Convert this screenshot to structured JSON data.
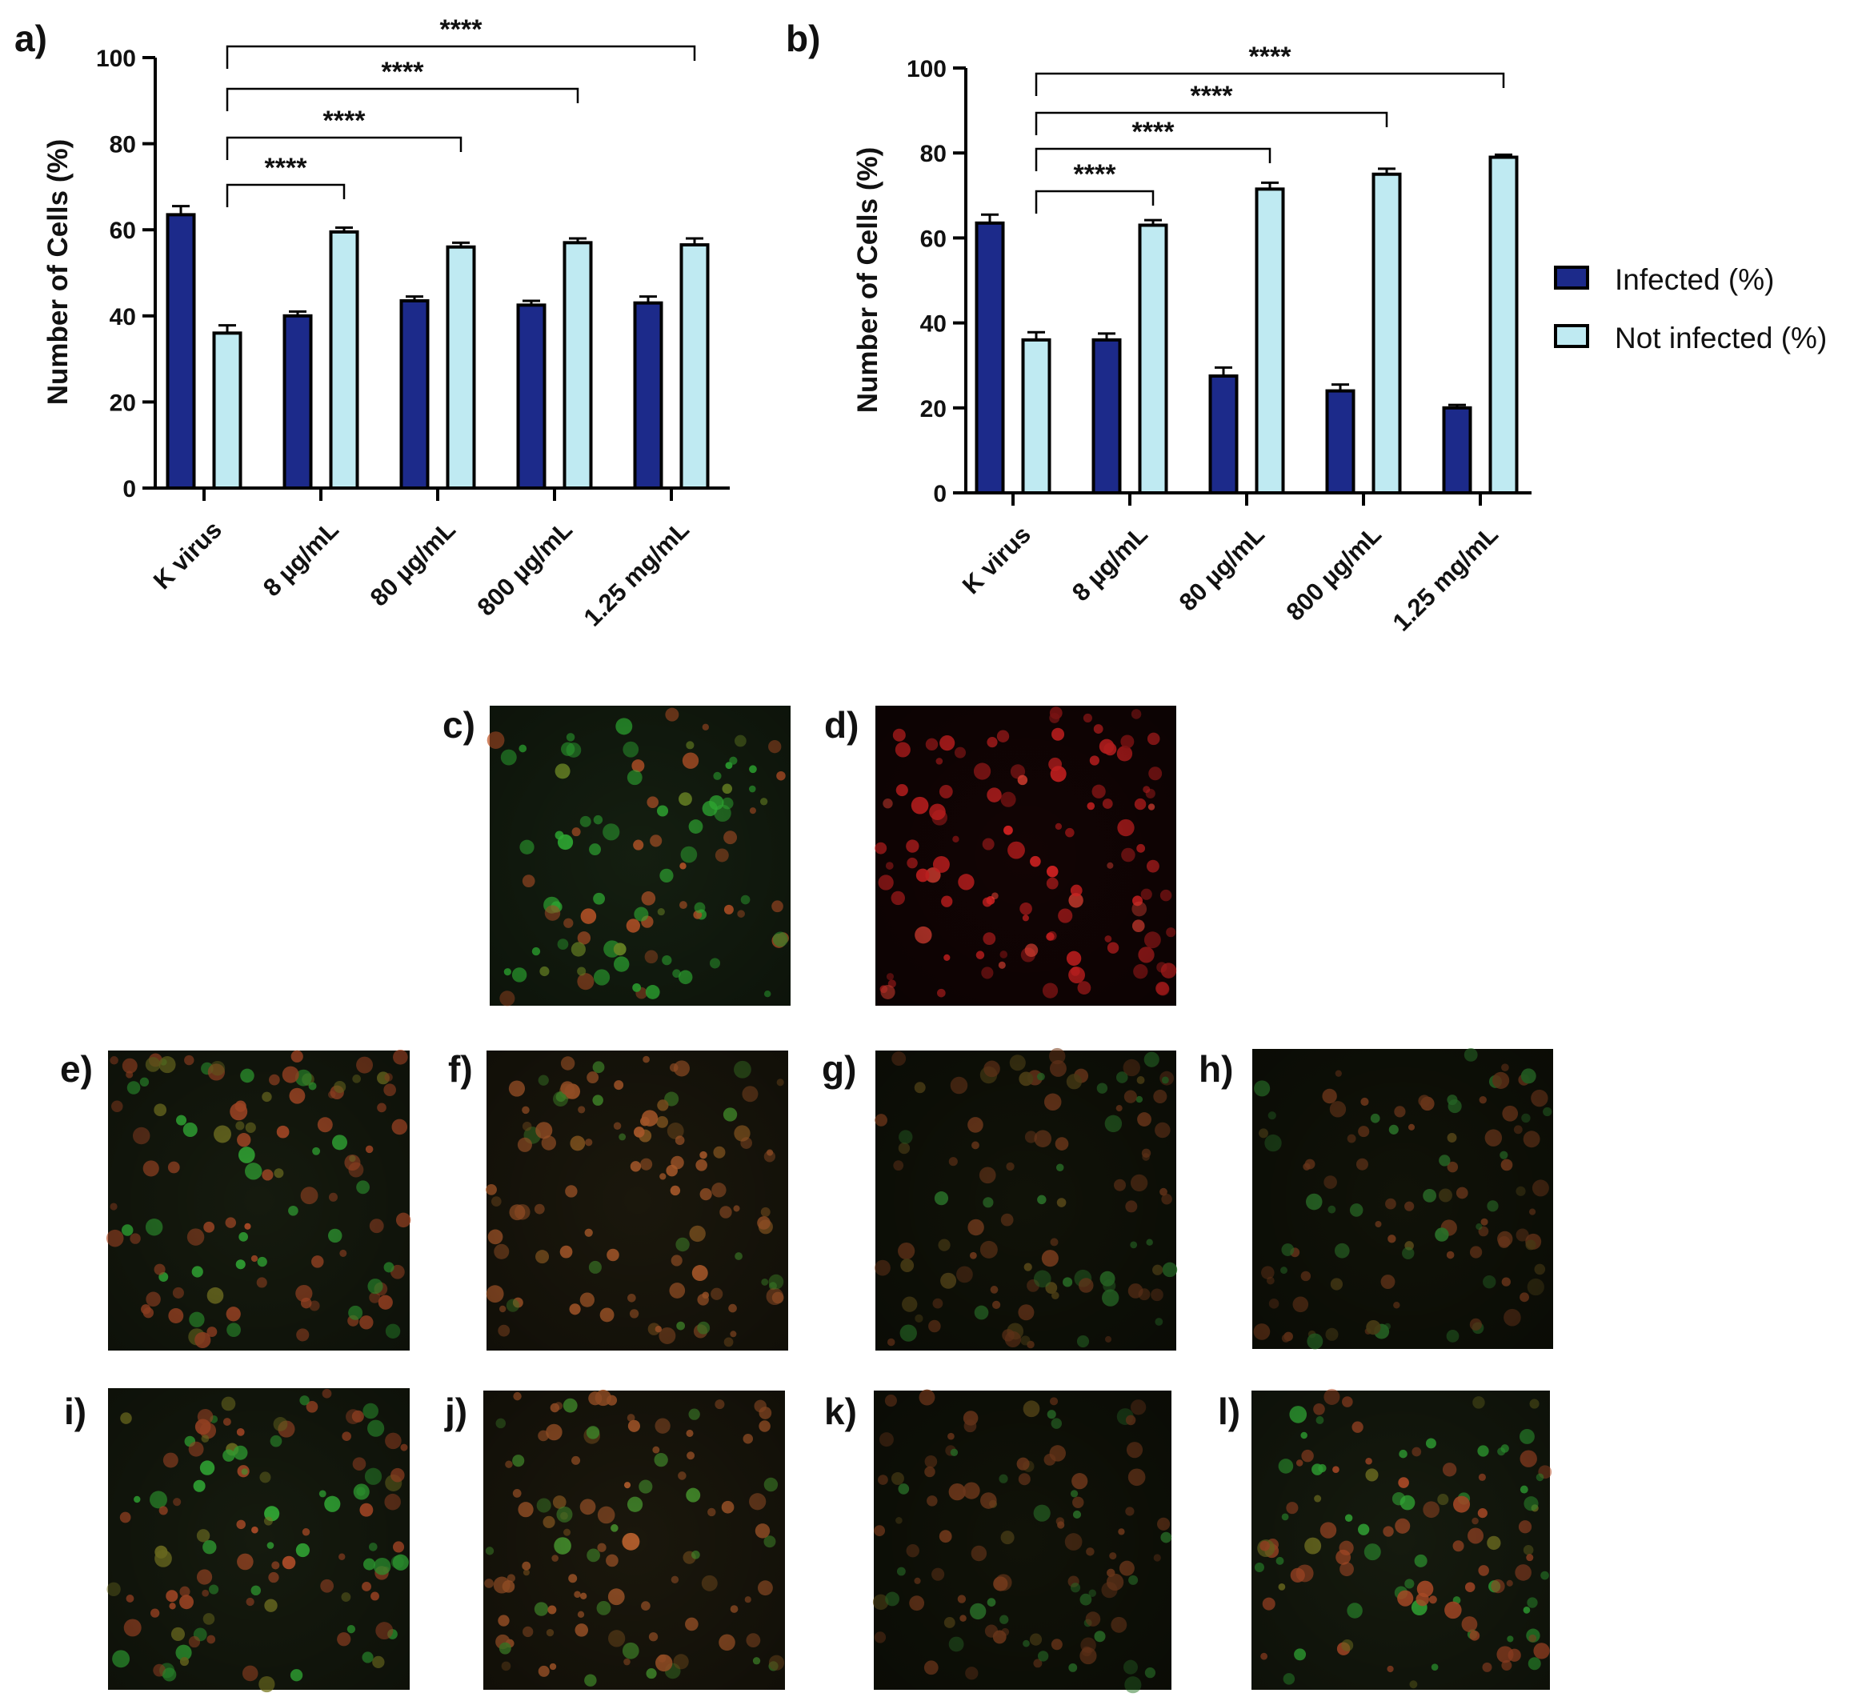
{
  "chart_data": [
    {
      "panel": "a)",
      "type": "bar",
      "categories": [
        "K virus",
        "8 µg/mL",
        "80 µg/mL",
        "800 µg/mL",
        "1.25 mg/mL"
      ],
      "series": [
        {
          "name": "Infected (%)",
          "color": "#1c2a8a",
          "values": [
            63.5,
            40,
            43.5,
            42.5,
            43
          ],
          "errors": [
            2,
            1,
            1,
            1,
            1.5
          ]
        },
        {
          "name": "Not infected (%)",
          "color": "#bfeaf2",
          "values": [
            36,
            59.5,
            56,
            57,
            56.5
          ],
          "errors": [
            1.8,
            1,
            1,
            1,
            1.5
          ]
        }
      ],
      "ylabel": "Number of Cells (%)",
      "ylim": [
        0,
        100
      ],
      "yticks": [
        "0",
        "20",
        "40",
        "60",
        "80",
        "100"
      ],
      "significance": [
        {
          "from": "K virus",
          "to": "8 µg/mL",
          "label": "****"
        },
        {
          "from": "K virus",
          "to": "80 µg/mL",
          "label": "****"
        },
        {
          "from": "K virus",
          "to": "800 µg/mL",
          "label": "****"
        },
        {
          "from": "K virus",
          "to": "1.25 mg/mL",
          "label": "****"
        }
      ]
    },
    {
      "panel": "b)",
      "type": "bar",
      "categories": [
        "K virus",
        "8 µg/mL",
        "80 µg/mL",
        "800 µg/mL",
        "1.25 mg/mL"
      ],
      "series": [
        {
          "name": "Infected (%)",
          "color": "#1c2a8a",
          "values": [
            63.5,
            36,
            27.5,
            24,
            20
          ],
          "errors": [
            2,
            1.5,
            2,
            1.5,
            0.7
          ]
        },
        {
          "name": "Not infected (%)",
          "color": "#bfeaf2",
          "values": [
            36,
            63,
            71.5,
            75,
            79
          ],
          "errors": [
            1.8,
            1.2,
            1.5,
            1.3,
            0.6
          ]
        }
      ],
      "ylabel": "Number of Cells  (%)",
      "ylim": [
        0,
        100
      ],
      "yticks": [
        "0",
        "20",
        "40",
        "60",
        "80",
        "100"
      ],
      "significance": [
        {
          "from": "K virus",
          "to": "8 µg/mL",
          "label": "****"
        },
        {
          "from": "K virus",
          "to": "80 µg/mL",
          "label": "****"
        },
        {
          "from": "K virus",
          "to": "800 µg/mL",
          "label": "****"
        },
        {
          "from": "K virus",
          "to": "1.25 mg/mL",
          "label": "****"
        }
      ]
    }
  ],
  "legend": {
    "items": [
      "Infected (%)",
      "Not infected (%)"
    ],
    "placement": "right"
  },
  "micrographs": [
    {
      "label": "c)",
      "style": "green"
    },
    {
      "label": "d)",
      "style": "red"
    },
    {
      "label": "e)",
      "style": "mixed"
    },
    {
      "label": "f)",
      "style": "orange"
    },
    {
      "label": "g)",
      "style": "dim"
    },
    {
      "label": "h)",
      "style": "dim"
    },
    {
      "label": "i)",
      "style": "mixed"
    },
    {
      "label": "j)",
      "style": "orange"
    },
    {
      "label": "k)",
      "style": "dim"
    },
    {
      "label": "l)",
      "style": "mixed"
    }
  ]
}
